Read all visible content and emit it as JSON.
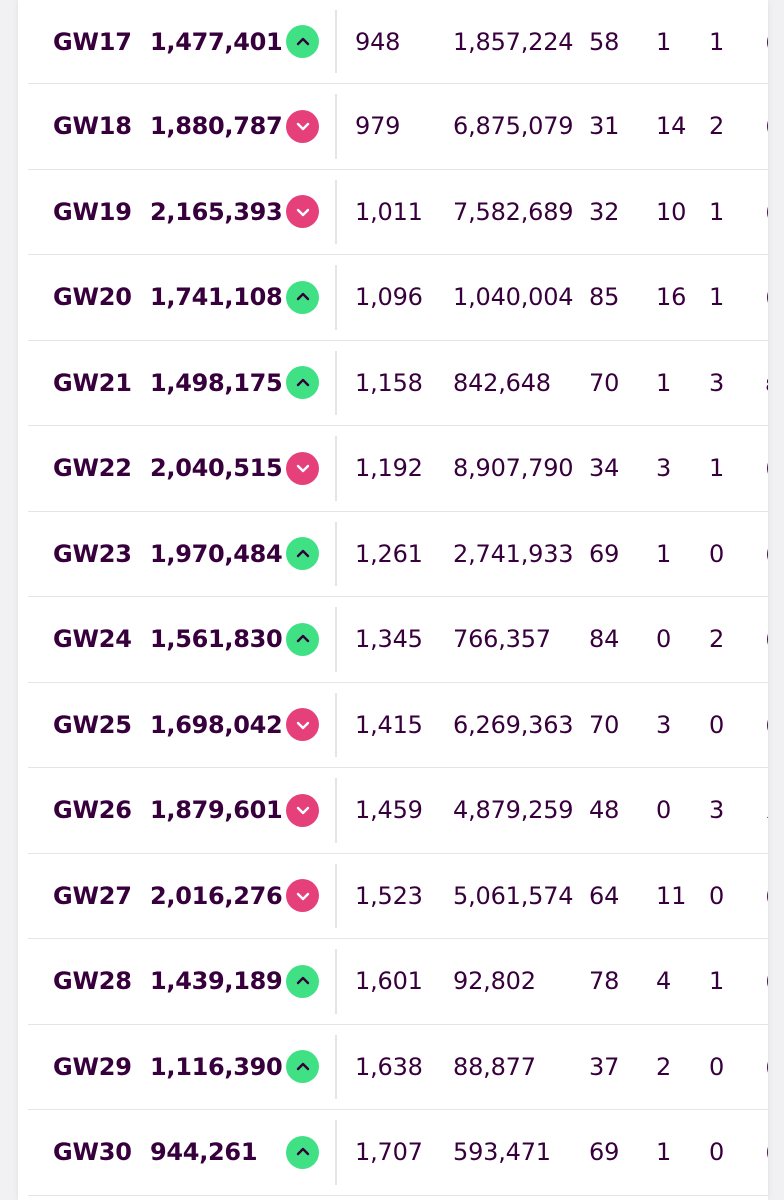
{
  "rows": [
    {
      "gw": "GW17",
      "points": "1,477,401",
      "trend": "up",
      "rank": "948",
      "transfers": "1,857,224",
      "c3": "58",
      "c4": "1",
      "c5": "1",
      "c6": "("
    },
    {
      "gw": "GW18",
      "points": "1,880,787",
      "trend": "down",
      "rank": "979",
      "transfers": "6,875,079",
      "c3": "31",
      "c4": "14",
      "c5": "2",
      "c6": "("
    },
    {
      "gw": "GW19",
      "points": "2,165,393",
      "trend": "down",
      "rank": "1,011",
      "transfers": "7,582,689",
      "c3": "32",
      "c4": "10",
      "c5": "1",
      "c6": "("
    },
    {
      "gw": "GW20",
      "points": "1,741,108",
      "trend": "up",
      "rank": "1,096",
      "transfers": "1,040,004",
      "c3": "85",
      "c4": "16",
      "c5": "1",
      "c6": "("
    },
    {
      "gw": "GW21",
      "points": "1,498,175",
      "trend": "up",
      "rank": "1,158",
      "transfers": "842,648",
      "c3": "70",
      "c4": "1",
      "c5": "3",
      "c6": "ε"
    },
    {
      "gw": "GW22",
      "points": "2,040,515",
      "trend": "down",
      "rank": "1,192",
      "transfers": "8,907,790",
      "c3": "34",
      "c4": "3",
      "c5": "1",
      "c6": "("
    },
    {
      "gw": "GW23",
      "points": "1,970,484",
      "trend": "up",
      "rank": "1,261",
      "transfers": "2,741,933",
      "c3": "69",
      "c4": "1",
      "c5": "0",
      "c6": "("
    },
    {
      "gw": "GW24",
      "points": "1,561,830",
      "trend": "up",
      "rank": "1,345",
      "transfers": "766,357",
      "c3": "84",
      "c4": "0",
      "c5": "2",
      "c6": "("
    },
    {
      "gw": "GW25",
      "points": "1,698,042",
      "trend": "down",
      "rank": "1,415",
      "transfers": "6,269,363",
      "c3": "70",
      "c4": "3",
      "c5": "0",
      "c6": "("
    },
    {
      "gw": "GW26",
      "points": "1,879,601",
      "trend": "down",
      "rank": "1,459",
      "transfers": "4,879,259",
      "c3": "48",
      "c4": "0",
      "c5": "3",
      "c6": "∠"
    },
    {
      "gw": "GW27",
      "points": "2,016,276",
      "trend": "down",
      "rank": "1,523",
      "transfers": "5,061,574",
      "c3": "64",
      "c4": "11",
      "c5": "0",
      "c6": "("
    },
    {
      "gw": "GW28",
      "points": "1,439,189",
      "trend": "up",
      "rank": "1,601",
      "transfers": "92,802",
      "c3": "78",
      "c4": "4",
      "c5": "1",
      "c6": "("
    },
    {
      "gw": "GW29",
      "points": "1,116,390",
      "trend": "up",
      "rank": "1,638",
      "transfers": "88,877",
      "c3": "37",
      "c4": "2",
      "c5": "0",
      "c6": "("
    },
    {
      "gw": "GW30",
      "points": "944,261",
      "trend": "up",
      "rank": "1,707",
      "transfers": "593,471",
      "c3": "69",
      "c4": "1",
      "c5": "0",
      "c6": "("
    }
  ],
  "colors": {
    "text": "#37003c",
    "up": "#3fe184",
    "down": "#e5407a"
  },
  "icons": {
    "up": "chevron-up-icon",
    "down": "chevron-down-icon"
  }
}
